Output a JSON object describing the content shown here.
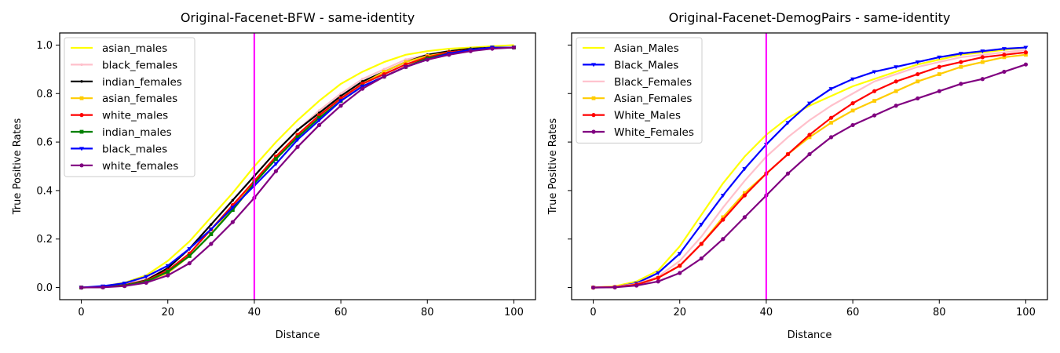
{
  "chart_data": [
    {
      "type": "line",
      "title": "Original-Facenet-BFW - same-identity",
      "xlabel": "Distance",
      "ylabel": "True Positive Rates",
      "xlim": [
        -5,
        105
      ],
      "ylim": [
        -0.05,
        1.05
      ],
      "xticks": [
        "0",
        "20",
        "40",
        "60",
        "80",
        "100"
      ],
      "yticks": [
        "0.0",
        "0.2",
        "0.4",
        "0.6",
        "0.8",
        "1.0"
      ],
      "vline": {
        "x": 40,
        "color": "#ff00ff"
      },
      "legend_position": "upper-left",
      "x": [
        0,
        5,
        10,
        15,
        20,
        25,
        30,
        35,
        40,
        45,
        50,
        55,
        60,
        65,
        70,
        75,
        80,
        85,
        90,
        95,
        100
      ],
      "series": [
        {
          "name": "asian_males",
          "color": "#ffff00",
          "marker": "none",
          "values": [
            0.0,
            0.005,
            0.02,
            0.05,
            0.11,
            0.19,
            0.29,
            0.39,
            0.5,
            0.6,
            0.69,
            0.77,
            0.84,
            0.89,
            0.93,
            0.96,
            0.975,
            0.985,
            0.99,
            0.995,
            1.0
          ]
        },
        {
          "name": "black_females",
          "color": "#ffc0cb",
          "marker": "point",
          "values": [
            0.0,
            0.003,
            0.012,
            0.035,
            0.08,
            0.16,
            0.26,
            0.36,
            0.46,
            0.56,
            0.65,
            0.73,
            0.8,
            0.86,
            0.9,
            0.94,
            0.96,
            0.975,
            0.985,
            0.99,
            0.99
          ]
        },
        {
          "name": "indian_females",
          "color": "#000000",
          "marker": "point",
          "values": [
            0.0,
            0.002,
            0.01,
            0.03,
            0.08,
            0.16,
            0.26,
            0.36,
            0.46,
            0.56,
            0.65,
            0.72,
            0.79,
            0.85,
            0.89,
            0.93,
            0.96,
            0.975,
            0.985,
            0.99,
            0.99
          ]
        },
        {
          "name": "asian_females",
          "color": "#ffcc00",
          "marker": "square",
          "values": [
            0.0,
            0.002,
            0.008,
            0.025,
            0.06,
            0.13,
            0.22,
            0.33,
            0.44,
            0.54,
            0.63,
            0.71,
            0.78,
            0.84,
            0.89,
            0.93,
            0.955,
            0.97,
            0.98,
            0.99,
            0.99
          ]
        },
        {
          "name": "white_males",
          "color": "#ff0000",
          "marker": "circle",
          "values": [
            0.0,
            0.002,
            0.009,
            0.028,
            0.07,
            0.14,
            0.24,
            0.34,
            0.44,
            0.54,
            0.63,
            0.71,
            0.78,
            0.84,
            0.88,
            0.92,
            0.95,
            0.97,
            0.98,
            0.99,
            0.99
          ]
        },
        {
          "name": "indian_males",
          "color": "#008000",
          "marker": "square",
          "values": [
            0.0,
            0.002,
            0.008,
            0.025,
            0.065,
            0.13,
            0.22,
            0.32,
            0.43,
            0.53,
            0.62,
            0.7,
            0.77,
            0.83,
            0.87,
            0.91,
            0.945,
            0.965,
            0.98,
            0.99,
            0.99
          ]
        },
        {
          "name": "black_males",
          "color": "#0000ff",
          "marker": "triangle",
          "values": [
            0.0,
            0.006,
            0.018,
            0.045,
            0.09,
            0.16,
            0.24,
            0.33,
            0.42,
            0.51,
            0.61,
            0.69,
            0.77,
            0.83,
            0.87,
            0.91,
            0.94,
            0.965,
            0.98,
            0.99,
            0.99
          ]
        },
        {
          "name": "white_females",
          "color": "#800080",
          "marker": "circle",
          "values": [
            0.0,
            0.001,
            0.006,
            0.02,
            0.05,
            0.1,
            0.18,
            0.27,
            0.37,
            0.48,
            0.58,
            0.67,
            0.75,
            0.82,
            0.87,
            0.91,
            0.94,
            0.96,
            0.975,
            0.985,
            0.99
          ]
        }
      ]
    },
    {
      "type": "line",
      "title": "Original-Facenet-DemogPairs - same-identity",
      "xlabel": "Distance",
      "ylabel": "True Positive Rates",
      "xlim": [
        -5,
        105
      ],
      "ylim": [
        -0.05,
        1.05
      ],
      "xticks": [
        "0",
        "20",
        "40",
        "60",
        "80",
        "100"
      ],
      "yticks": [
        "0.0",
        "0.2",
        "0.4",
        "0.6",
        "0.8",
        "1.0"
      ],
      "vline": {
        "x": 40,
        "color": "#ff00ff"
      },
      "legend_position": "upper-left",
      "x": [
        0,
        5,
        10,
        15,
        20,
        25,
        30,
        35,
        40,
        45,
        50,
        55,
        60,
        65,
        70,
        75,
        80,
        85,
        90,
        95,
        100
      ],
      "series": [
        {
          "name": "Asian_Males",
          "color": "#ffff00",
          "marker": "none",
          "values": [
            0.0,
            0.005,
            0.025,
            0.07,
            0.17,
            0.3,
            0.43,
            0.54,
            0.63,
            0.7,
            0.75,
            0.79,
            0.83,
            0.86,
            0.89,
            0.92,
            0.94,
            0.96,
            0.97,
            0.98,
            0.99
          ]
        },
        {
          "name": "Black_Males",
          "color": "#0000ff",
          "marker": "triangle",
          "values": [
            0.0,
            0.002,
            0.018,
            0.06,
            0.14,
            0.26,
            0.38,
            0.49,
            0.59,
            0.68,
            0.76,
            0.82,
            0.86,
            0.89,
            0.91,
            0.93,
            0.95,
            0.965,
            0.975,
            0.985,
            0.99
          ]
        },
        {
          "name": "Black_Females",
          "color": "#ffc0cb",
          "marker": "none",
          "values": [
            0.0,
            0.003,
            0.015,
            0.045,
            0.11,
            0.21,
            0.33,
            0.44,
            0.54,
            0.62,
            0.69,
            0.75,
            0.8,
            0.85,
            0.88,
            0.91,
            0.93,
            0.95,
            0.96,
            0.97,
            0.98
          ]
        },
        {
          "name": "Asian_Females",
          "color": "#ffcc00",
          "marker": "square",
          "values": [
            0.0,
            0.002,
            0.012,
            0.04,
            0.09,
            0.18,
            0.29,
            0.39,
            0.47,
            0.55,
            0.62,
            0.68,
            0.73,
            0.77,
            0.81,
            0.85,
            0.88,
            0.91,
            0.93,
            0.95,
            0.96
          ]
        },
        {
          "name": "White_Males",
          "color": "#ff0000",
          "marker": "circle",
          "values": [
            0.0,
            0.002,
            0.012,
            0.04,
            0.09,
            0.18,
            0.28,
            0.38,
            0.47,
            0.55,
            0.63,
            0.7,
            0.76,
            0.81,
            0.85,
            0.88,
            0.91,
            0.93,
            0.95,
            0.96,
            0.97
          ]
        },
        {
          "name": "White_Females",
          "color": "#800080",
          "marker": "circle",
          "values": [
            0.0,
            0.001,
            0.008,
            0.025,
            0.06,
            0.12,
            0.2,
            0.29,
            0.38,
            0.47,
            0.55,
            0.62,
            0.67,
            0.71,
            0.75,
            0.78,
            0.81,
            0.84,
            0.86,
            0.89,
            0.92
          ]
        }
      ]
    }
  ]
}
